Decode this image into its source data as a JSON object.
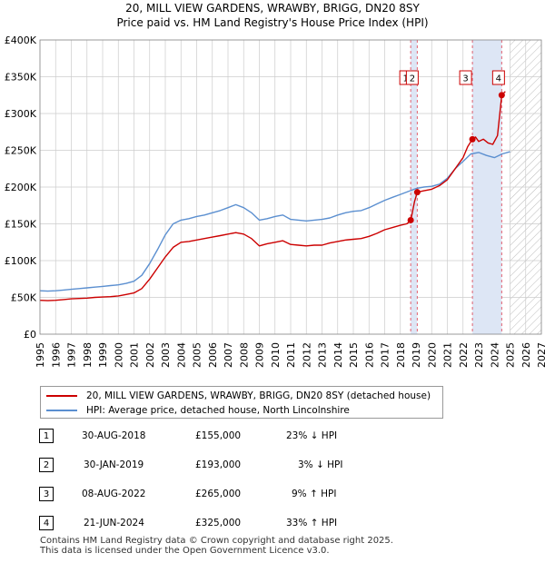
{
  "title_line1": "20, MILL VIEW GARDENS, WRAWBY, BRIGG, DN20 8SY",
  "title_line2": "Price paid vs. HM Land Registry's House Price Index (HPI)",
  "chart_data": {
    "type": "line",
    "title": "Price paid vs. HM Land Registry's House Price Index (HPI)",
    "xlim": [
      1995,
      2027
    ],
    "ylim": [
      0,
      400000
    ],
    "y_ticks": [
      0,
      50000,
      100000,
      150000,
      200000,
      250000,
      300000,
      350000,
      400000
    ],
    "y_tick_labels": [
      "£0",
      "£50K",
      "£100K",
      "£150K",
      "£200K",
      "£250K",
      "£300K",
      "£350K",
      "£400K"
    ],
    "x_ticks": [
      "1995",
      "1996",
      "1997",
      "1998",
      "1999",
      "2000",
      "2001",
      "2002",
      "2003",
      "2004",
      "2005",
      "2006",
      "2007",
      "2008",
      "2009",
      "2010",
      "2011",
      "2012",
      "2013",
      "2014",
      "2015",
      "2016",
      "2017",
      "2018",
      "2019",
      "2020",
      "2021",
      "2022",
      "2023",
      "2024",
      "2025",
      "2026",
      "2027"
    ],
    "colors": {
      "property": "#cc0000",
      "hpi": "#5b8fd0",
      "shade": "#dde6f5",
      "marker_line": "#e06070"
    },
    "forecast_start": 2025.0,
    "series": [
      {
        "name": "20, MILL VIEW GARDENS, WRAWBY, BRIGG, DN20 8SY (detached house)",
        "color": "#cc0000",
        "x": [
          1995.0,
          1995.5,
          1996.0,
          1996.5,
          1997.0,
          1997.5,
          1998.0,
          1998.5,
          1999.0,
          1999.5,
          2000.0,
          2000.5,
          2001.0,
          2001.5,
          2002.0,
          2002.5,
          2003.0,
          2003.5,
          2004.0,
          2004.5,
          2005.0,
          2005.5,
          2006.0,
          2006.5,
          2007.0,
          2007.5,
          2008.0,
          2008.5,
          2009.0,
          2009.5,
          2010.0,
          2010.5,
          2011.0,
          2011.5,
          2012.0,
          2012.5,
          2013.0,
          2013.5,
          2014.0,
          2014.5,
          2015.0,
          2015.5,
          2016.0,
          2016.5,
          2017.0,
          2017.5,
          2018.0,
          2018.4,
          2018.66,
          2018.67,
          2018.9,
          2019.08,
          2019.5,
          2020.0,
          2020.5,
          2021.0,
          2021.5,
          2022.0,
          2022.3,
          2022.6,
          2022.8,
          2023.0,
          2023.3,
          2023.6,
          2023.9,
          2024.2,
          2024.47,
          2024.7
        ],
        "y": [
          46000,
          45500,
          46000,
          47000,
          48000,
          48500,
          49000,
          50000,
          50500,
          51000,
          52000,
          54000,
          56000,
          62000,
          75000,
          90000,
          105000,
          118000,
          125000,
          126000,
          128000,
          130000,
          132000,
          134000,
          136000,
          138000,
          136000,
          130000,
          120000,
          123000,
          125000,
          127000,
          122000,
          121000,
          120000,
          121000,
          121000,
          124000,
          126000,
          128000,
          129000,
          130000,
          133000,
          137000,
          142000,
          145000,
          148000,
          150000,
          154000,
          155000,
          180000,
          193000,
          195000,
          197000,
          202000,
          210000,
          225000,
          240000,
          255000,
          265000,
          268000,
          262000,
          265000,
          260000,
          258000,
          270000,
          325000,
          330000
        ]
      },
      {
        "name": "HPI: Average price, detached house, North Lincolnshire",
        "color": "#5b8fd0",
        "x": [
          1995.0,
          1995.5,
          1996.0,
          1996.5,
          1997.0,
          1997.5,
          1998.0,
          1998.5,
          1999.0,
          1999.5,
          2000.0,
          2000.5,
          2001.0,
          2001.5,
          2002.0,
          2002.5,
          2003.0,
          2003.5,
          2004.0,
          2004.5,
          2005.0,
          2005.5,
          2006.0,
          2006.5,
          2007.0,
          2007.5,
          2008.0,
          2008.5,
          2009.0,
          2009.5,
          2010.0,
          2010.5,
          2011.0,
          2011.5,
          2012.0,
          2012.5,
          2013.0,
          2013.5,
          2014.0,
          2014.5,
          2015.0,
          2015.5,
          2016.0,
          2016.5,
          2017.0,
          2017.5,
          2018.0,
          2018.5,
          2019.0,
          2019.5,
          2020.0,
          2020.5,
          2021.0,
          2021.5,
          2022.0,
          2022.5,
          2023.0,
          2023.5,
          2024.0,
          2024.5,
          2025.0
        ],
        "y": [
          59000,
          58500,
          59000,
          60000,
          61000,
          62000,
          63000,
          64000,
          65000,
          66000,
          67000,
          69000,
          72000,
          80000,
          96000,
          115000,
          135000,
          150000,
          155000,
          157000,
          160000,
          162000,
          165000,
          168000,
          172000,
          176000,
          172000,
          165000,
          155000,
          157000,
          160000,
          162000,
          156000,
          155000,
          154000,
          155000,
          156000,
          158000,
          162000,
          165000,
          167000,
          168000,
          172000,
          177000,
          182000,
          186000,
          190000,
          194000,
          198000,
          200000,
          201000,
          204000,
          212000,
          225000,
          235000,
          245000,
          247000,
          243000,
          240000,
          245000,
          248000
        ]
      }
    ],
    "sales": [
      {
        "num": "1",
        "x": 2018.66,
        "price": 155000
      },
      {
        "num": "2",
        "x": 2019.08,
        "price": 193000
      },
      {
        "num": "3",
        "x": 2022.6,
        "price": 265000
      },
      {
        "num": "4",
        "x": 2024.47,
        "price": 325000
      }
    ]
  },
  "legend": {
    "property": "20, MILL VIEW GARDENS, WRAWBY, BRIGG, DN20 8SY (detached house)",
    "hpi": "HPI: Average price, detached house, North Lincolnshire"
  },
  "sales": [
    {
      "num": "1",
      "date": "30-AUG-2018",
      "price": "£155,000",
      "hpi": "23% ↓ HPI"
    },
    {
      "num": "2",
      "date": "30-JAN-2019",
      "price": "£193,000",
      "hpi": "3% ↓ HPI"
    },
    {
      "num": "3",
      "date": "08-AUG-2022",
      "price": "£265,000",
      "hpi": "9% ↑ HPI"
    },
    {
      "num": "4",
      "date": "21-JUN-2024",
      "price": "£325,000",
      "hpi": "33% ↑ HPI"
    }
  ],
  "footer_line1": "Contains HM Land Registry data © Crown copyright and database right 2025.",
  "footer_line2": "This data is licensed under the Open Government Licence v3.0."
}
